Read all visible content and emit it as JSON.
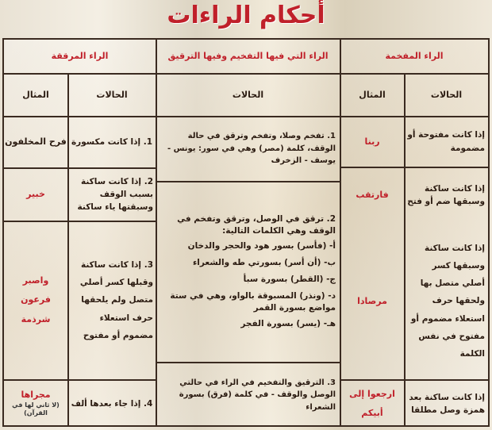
{
  "title": "أحكام الراءات",
  "groups": {
    "mufakhkhama": "الراء المفخمة",
    "both": "الراء التي فيها التفخيم وفيها الترقيق",
    "muraqqaqa": "الراء المرققة"
  },
  "subheaders": {
    "cases": "الحالات",
    "example": "المثال"
  },
  "mufakhkhama": [
    {
      "case": "إذا كانت مفتوحة أو مضمومة",
      "example": "ربنا"
    },
    {
      "case": "إذا كانت ساكنة وسبقها ضم أو فتح",
      "example": "فارتقب"
    },
    {
      "case": "إذا كانت ساكنة وسبقها كسر أصلي متصل بها ولحقها حرف استعلاء مضموم أو مفتوح في نفس الكلمة",
      "example": "مرصادا"
    },
    {
      "case": "إذا كانت ساكنة بعد همزة وصل مطلقا",
      "example": "ارجعوا إلى أبيكم"
    }
  ],
  "both": [
    "1. تفخم وصلا، وتفخم وترقق في حالة الوقف، كلمة (مصر) وهي في سور: يونس - يوسف - الزخرف",
    "2. ترقق في الوصل، وترقق وتفخم في الوقف وهي الكلمات التالية:",
    "أ- (فأسر) بسور هود والحجر والدخان",
    "ب- (أن أسر) بسورتي طه والشعراء",
    "ج- (القطر) بسورة سبأ",
    "د- (ونذر) المسبوقة بالواو، وهي في ستة مواضع بسورة القمر",
    "هـ- (يسر) بسورة الفجر",
    "3. الترقيق والتفخيم في الراء في حالتي الوصل والوقف - في كلمة (فرق) بسورة الشعراء"
  ],
  "muraqqaqa": [
    {
      "case": "1. إذا كانت مكسورة",
      "example": "فرح المخلفون"
    },
    {
      "case": "2. إذا كانت ساكنة بسبب الوقف وسبقتها ياء ساكنة",
      "example": "خبير"
    },
    {
      "case": "3. إذا كانت ساكنة وقبلها كسر أصلي متصل ولم يلحقها حرف استعلاء مضموم أو مفتوح",
      "example": [
        "واصبر",
        "فرعون",
        "شرذمة"
      ]
    },
    {
      "case": "4. إذا جاء بعدها ألف",
      "example": "مجراها",
      "note": "(لا ثاني لها في القرآن)"
    }
  ]
}
